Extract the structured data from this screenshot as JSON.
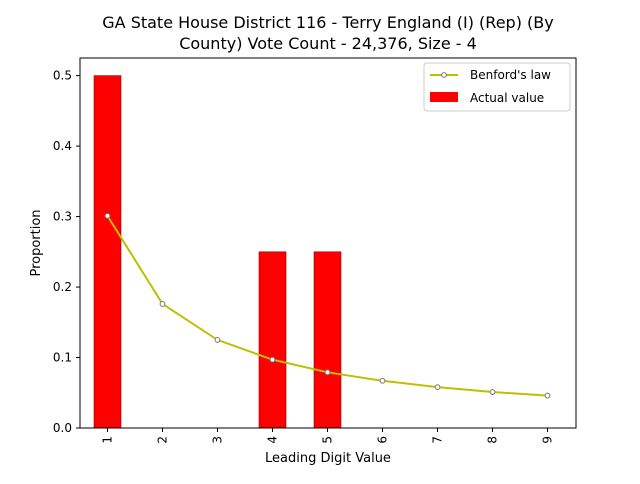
{
  "chart_data": {
    "type": "bar",
    "title_lines": [
      "GA State House District 116 - Terry England (I) (Rep) (By",
      "County) Vote Count - 24,376, Size - 4"
    ],
    "xlabel": "Leading Digit Value",
    "ylabel": "Proportion",
    "categories": [
      "1",
      "2",
      "3",
      "4",
      "5",
      "6",
      "7",
      "8",
      "9"
    ],
    "ylim": [
      0,
      0.525
    ],
    "yticks": [
      "0.0",
      "0.1",
      "0.2",
      "0.3",
      "0.4",
      "0.5"
    ],
    "grid": false,
    "legend_position": "top-right",
    "series": [
      {
        "name": "Benford's law",
        "kind": "line",
        "color": "#bfbf00",
        "values": [
          0.301,
          0.176,
          0.125,
          0.097,
          0.079,
          0.067,
          0.058,
          0.051,
          0.046
        ]
      },
      {
        "name": "Actual value",
        "kind": "bar",
        "color": "#ff0000",
        "values": [
          0.5,
          0,
          0,
          0.25,
          0.25,
          0,
          0,
          0,
          0
        ]
      }
    ]
  }
}
